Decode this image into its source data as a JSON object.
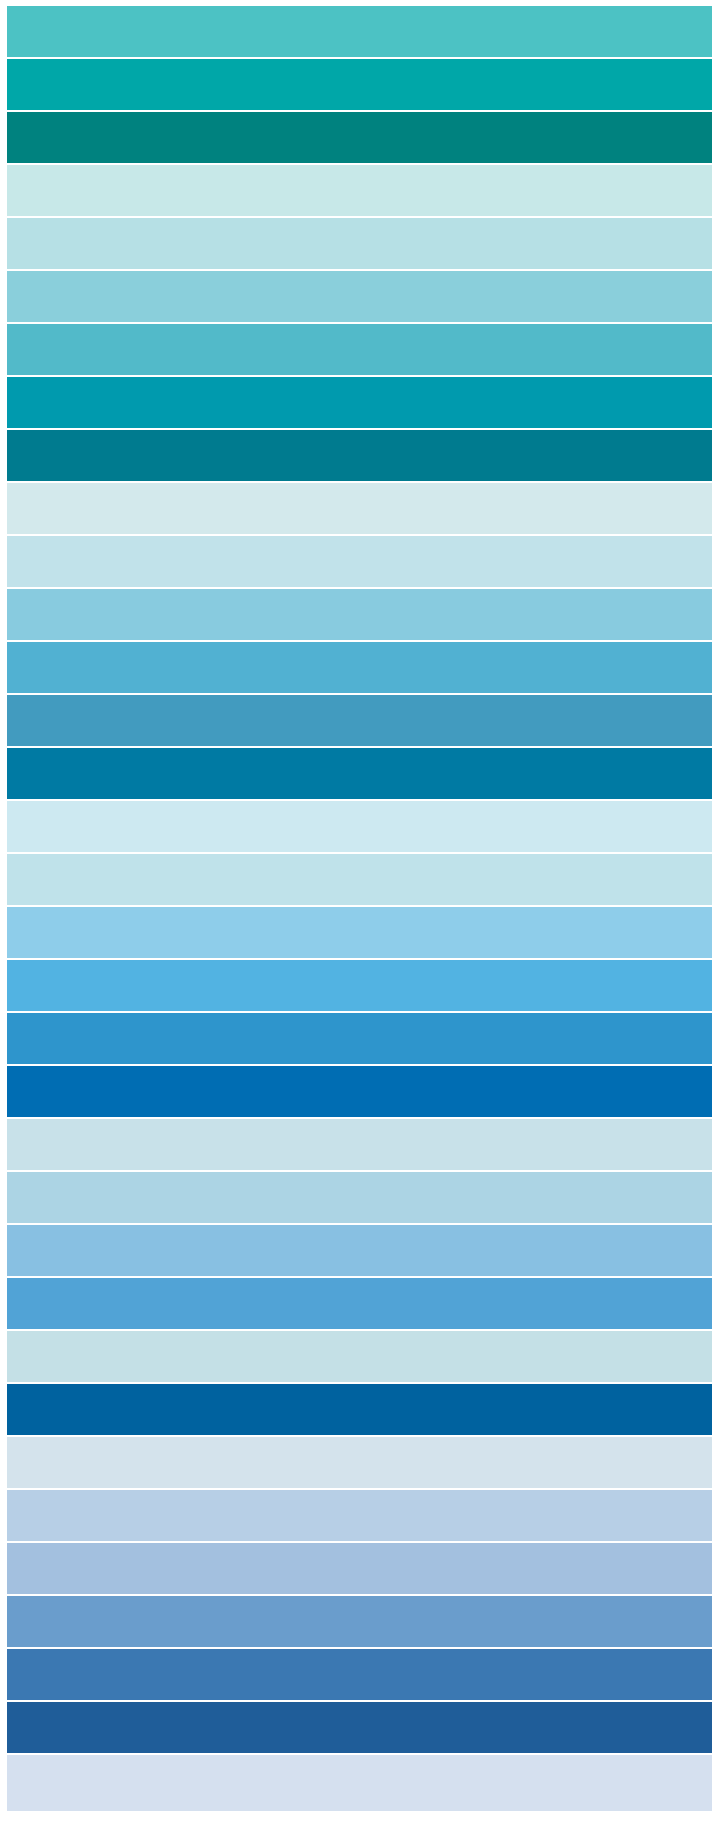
{
  "palette": {
    "swatches": [
      {
        "color": "#4cc2c4"
      },
      {
        "color": "#00a7a8"
      },
      {
        "color": "#00827f"
      },
      {
        "color": "#c7e8e8"
      },
      {
        "color": "#b6e0e5"
      },
      {
        "color": "#8acfdb"
      },
      {
        "color": "#52bac9"
      },
      {
        "color": "#009aae"
      },
      {
        "color": "#007b8f"
      },
      {
        "color": "#d3e9ec"
      },
      {
        "color": "#c1e2ea"
      },
      {
        "color": "#88cbdf"
      },
      {
        "color": "#51b1d2"
      },
      {
        "color": "#429bbf"
      },
      {
        "color": "#007aa3"
      },
      {
        "color": "#cde9f1"
      },
      {
        "color": "#bfe2ea"
      },
      {
        "color": "#8ecdea"
      },
      {
        "color": "#52b3e2"
      },
      {
        "color": "#2e95cc"
      },
      {
        "color": "#006db3"
      },
      {
        "color": "#c8e1e9"
      },
      {
        "color": "#acd4e4"
      },
      {
        "color": "#88c0e2"
      },
      {
        "color": "#51a3d6"
      },
      {
        "color": "#c4e0e6"
      },
      {
        "color": "#00629f"
      },
      {
        "color": "#d4e3ec"
      },
      {
        "color": "#b7cfe6"
      },
      {
        "color": "#a3c0df"
      },
      {
        "color": "#6a9dcc"
      },
      {
        "color": "#3b78b2"
      },
      {
        "color": "#1f5d99"
      },
      {
        "color": "#d5e0ef"
      }
    ]
  }
}
